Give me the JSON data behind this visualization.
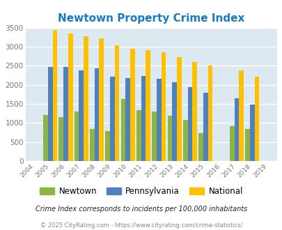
{
  "title": "Newtown Property Crime Index",
  "years": [
    2004,
    2005,
    2006,
    2007,
    2008,
    2009,
    2010,
    2011,
    2012,
    2013,
    2014,
    2015,
    2016,
    2017,
    2018,
    2019
  ],
  "newtown": [
    0,
    1200,
    1150,
    1300,
    850,
    780,
    1620,
    1330,
    1290,
    1180,
    1080,
    730,
    0,
    910,
    850,
    0
  ],
  "pennsylvania": [
    0,
    2460,
    2470,
    2380,
    2440,
    2210,
    2180,
    2240,
    2160,
    2070,
    1940,
    1800,
    0,
    1640,
    1490,
    0
  ],
  "national": [
    0,
    3430,
    3340,
    3270,
    3210,
    3040,
    2950,
    2900,
    2860,
    2730,
    2600,
    2500,
    0,
    2370,
    2210,
    0
  ],
  "newtown_color": "#8db544",
  "pennsylvania_color": "#4f81bd",
  "national_color": "#ffc000",
  "bg_color": "#dde9f0",
  "ylim": [
    0,
    3500
  ],
  "yticks": [
    0,
    500,
    1000,
    1500,
    2000,
    2500,
    3000,
    3500
  ],
  "subtitle": "Crime Index corresponds to incidents per 100,000 inhabitants",
  "footer": "© 2025 CityRating.com - https://www.cityrating.com/crime-statistics/",
  "bar_width": 0.3
}
